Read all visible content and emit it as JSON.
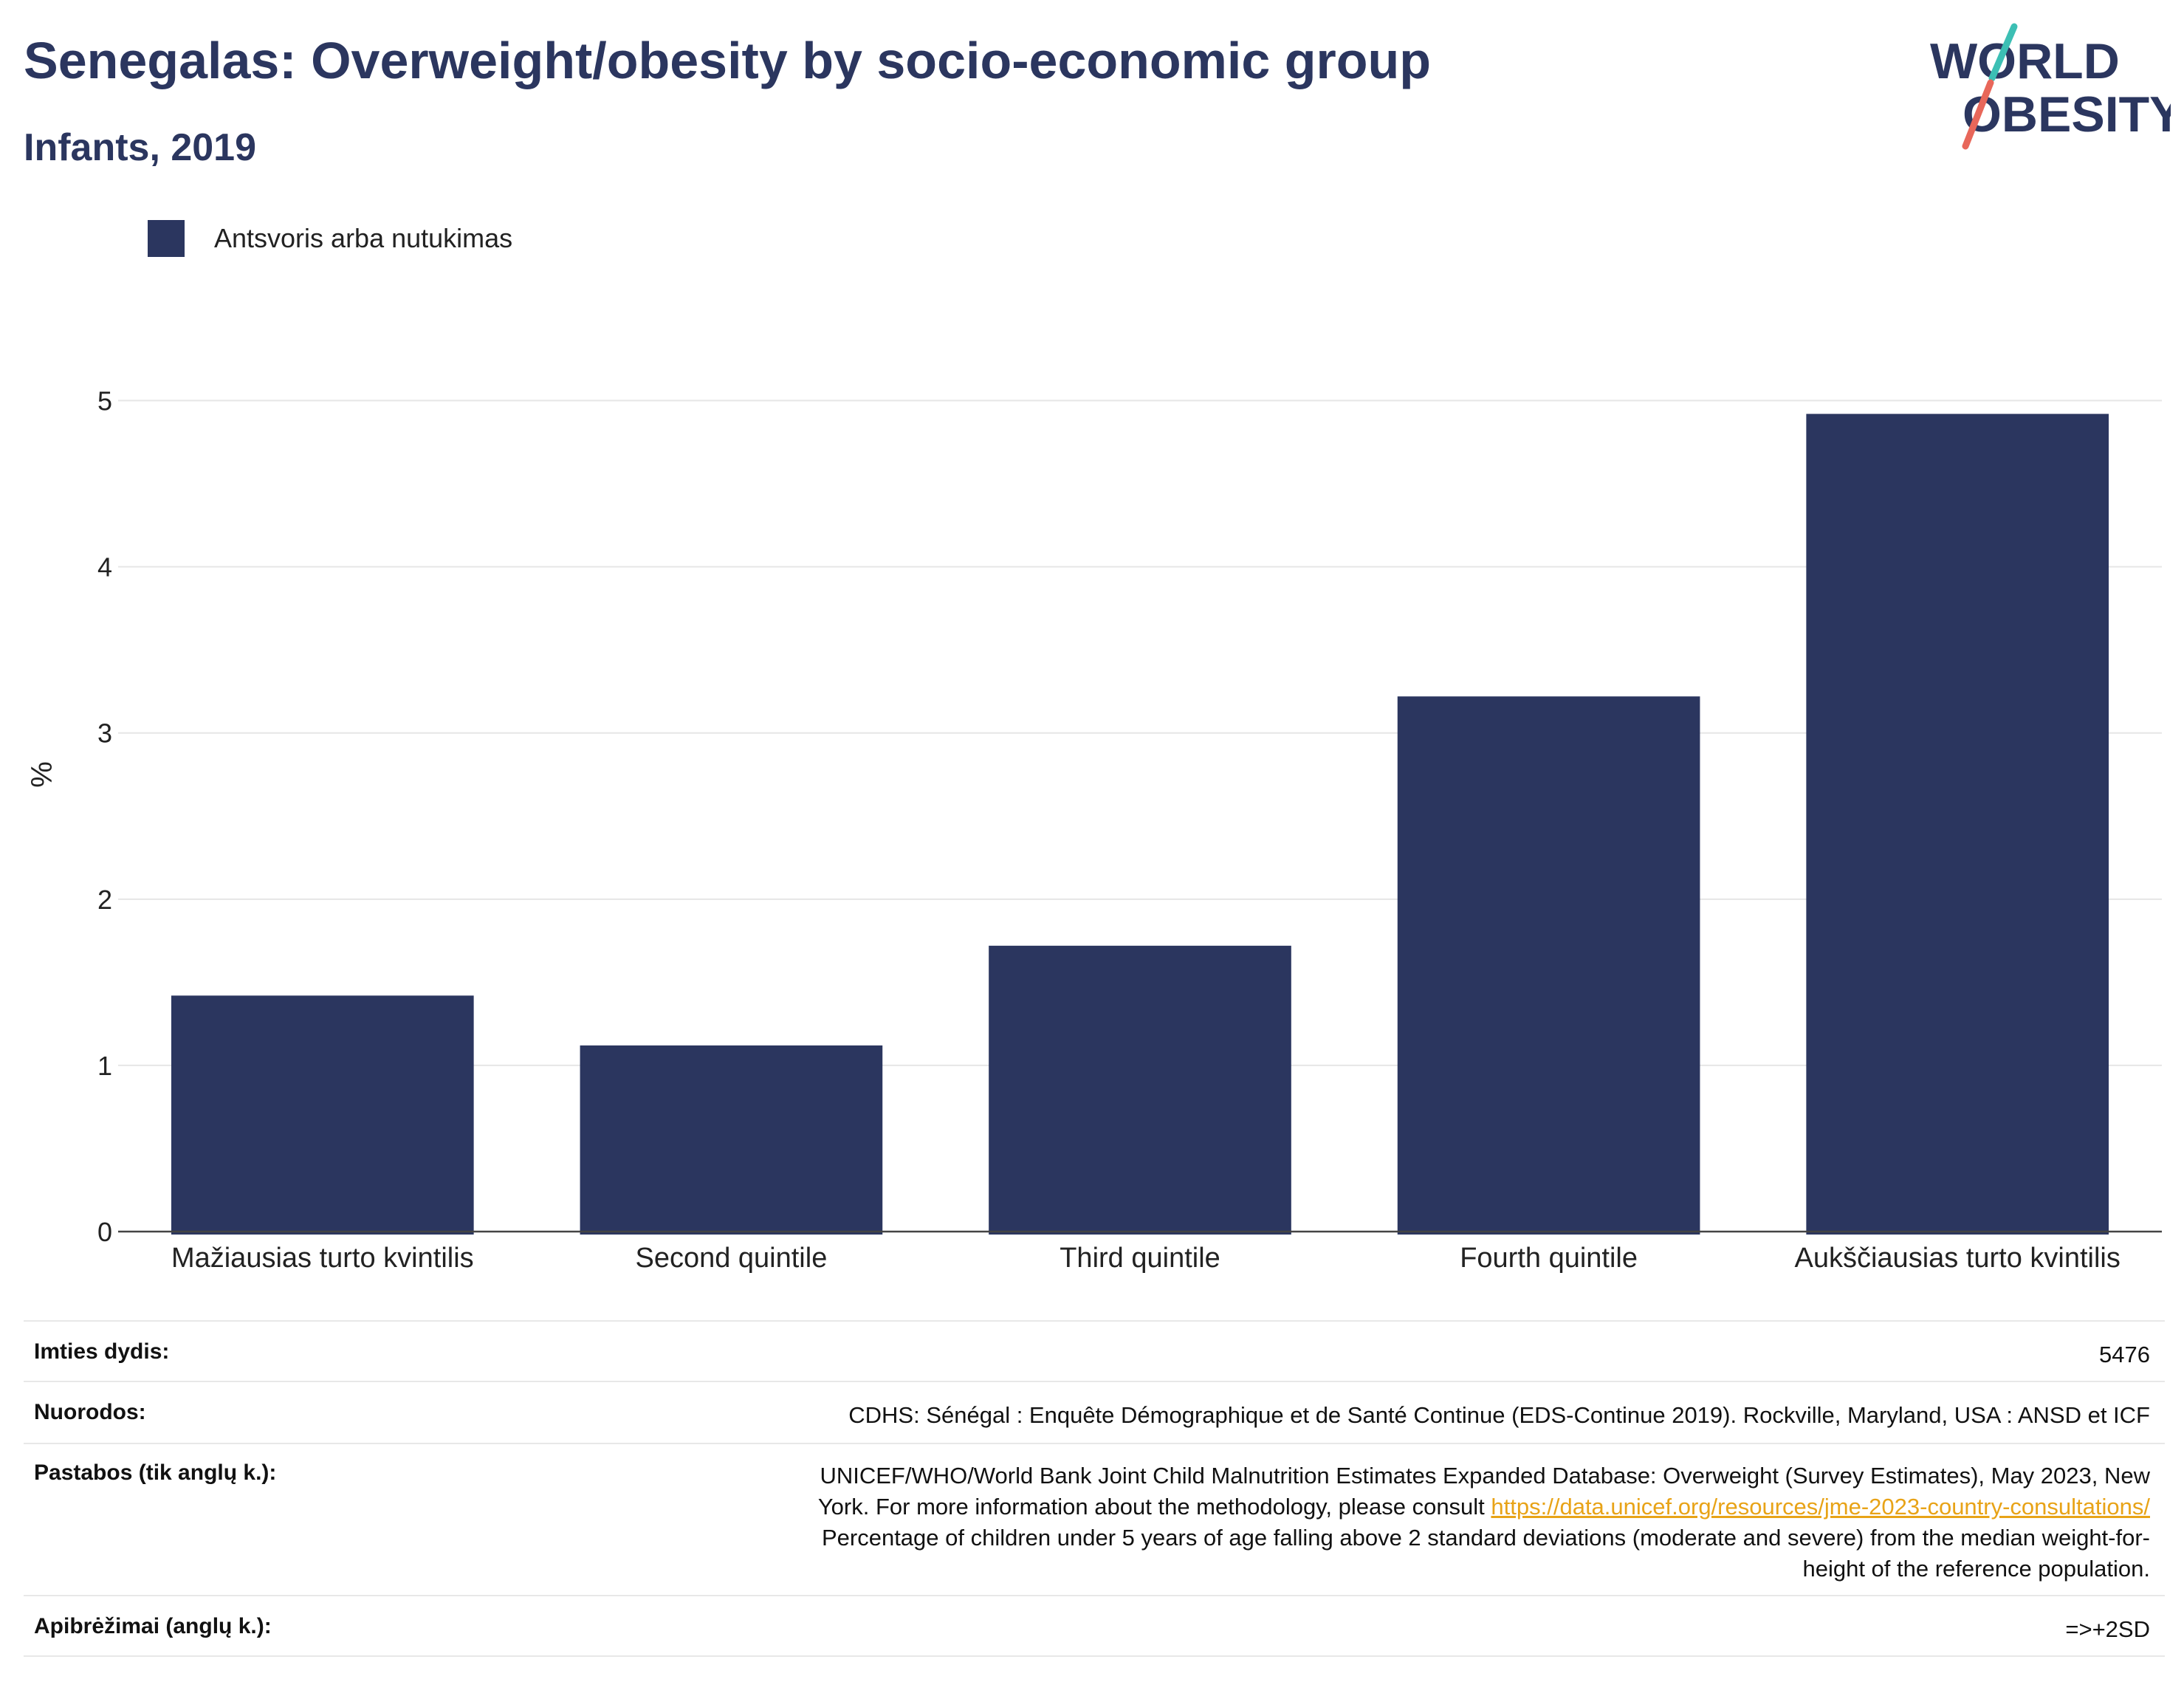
{
  "header": {
    "title": "Senegalas: Overweight/obesity by socio-economic group",
    "subtitle": "Infants, 2019"
  },
  "logo": {
    "line1": "WORLD",
    "line2": "OBESITY",
    "colors": {
      "text": "#2b365f",
      "slash_top": "#3cbfb4",
      "slash_bottom": "#e8675a"
    }
  },
  "legend": {
    "items": [
      {
        "label": "Antsvoris arba nutukimas",
        "color": "#2b365f"
      }
    ]
  },
  "chart_data": {
    "type": "bar",
    "categories": [
      "Mažiausias turto kvintilis",
      "Second quintile",
      "Third quintile",
      "Fourth quintile",
      "Aukščiausias turto kvintilis"
    ],
    "series": [
      {
        "name": "Antsvoris arba nutukimas",
        "values": [
          1.42,
          1.12,
          1.72,
          3.22,
          4.92
        ],
        "color": "#2b365f"
      }
    ],
    "ylabel": "%",
    "ylim": [
      0,
      5.5
    ],
    "yticks": [
      0,
      1,
      2,
      3,
      4,
      5
    ],
    "grid": true,
    "legend_position": "top-left"
  },
  "info": {
    "rows": [
      {
        "key": "Imties dydis:",
        "value": "5476"
      },
      {
        "key": "Nuorodos:",
        "value": "CDHS: Sénégal : Enquête Démographique et de Santé Continue (EDS-Continue 2019). Rockville, Maryland, USA : ANSD et ICF"
      },
      {
        "key": "Pastabos (tik anglų k.):",
        "value_line1": "UNICEF/WHO/World Bank Joint Child Malnutrition Estimates Expanded Database: Overweight (Survey Estimates), May 2023, New",
        "value_line2": "York. For more information about the methodology, please consult",
        "link": "https://data.unicef.org/resources/jme-2023-country-consultations/",
        "value_line3": "Percentage of children under 5 years of age falling above 2 standard deviations (moderate and severe) from the median weight-for-",
        "value_line4": "height of the reference population."
      },
      {
        "key": "Apibrėžimai (anglų k.):",
        "value": "=>+2SD"
      }
    ]
  }
}
